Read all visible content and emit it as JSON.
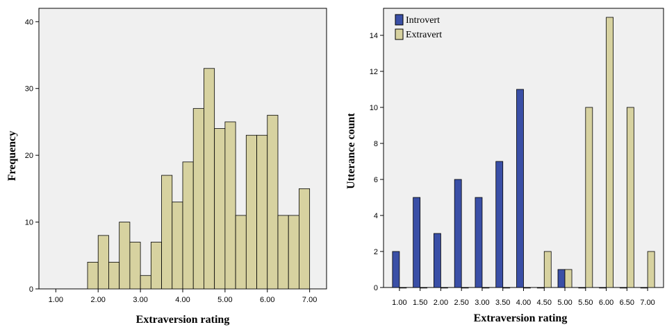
{
  "chart_data": [
    {
      "type": "bar",
      "title": "",
      "xlabel": "Extraversion rating",
      "ylabel": "Frequency",
      "xlim": [
        0.6,
        7.4
      ],
      "ylim": [
        0,
        42
      ],
      "x_ticks": [
        "1.00",
        "2.00",
        "3.00",
        "4.00",
        "5.00",
        "6.00",
        "7.00"
      ],
      "x_tick_values": [
        1,
        2,
        3,
        4,
        5,
        6,
        7
      ],
      "y_ticks": [
        "0",
        "10",
        "20",
        "30",
        "40"
      ],
      "y_tick_values": [
        0,
        10,
        20,
        30,
        40
      ],
      "bin_edges": [
        1.75,
        2.0,
        2.25,
        2.5,
        2.75,
        3.0,
        3.25,
        3.5,
        3.75,
        4.0,
        4.25,
        4.5,
        4.75,
        5.0,
        5.25,
        5.5,
        5.75,
        6.0,
        6.25,
        6.5,
        6.75,
        7.0
      ],
      "values": [
        4,
        8,
        4,
        10,
        7,
        2,
        7,
        17,
        13,
        19,
        27,
        33,
        24,
        25,
        11,
        23,
        23,
        26,
        11,
        11,
        15
      ],
      "color": "#d7d2a0",
      "plot_bg": "#f0f0f0"
    },
    {
      "type": "bar",
      "title": "",
      "xlabel": "Extraversion rating",
      "ylabel": "Utterance count",
      "ylim": [
        0,
        15.5
      ],
      "categories": [
        "1.00",
        "1.50",
        "2.00",
        "2.50",
        "3.00",
        "3.50",
        "4.00",
        "4.50",
        "5.00",
        "5.50",
        "6.00",
        "6.50",
        "7.00"
      ],
      "y_ticks": [
        "0",
        "2",
        "4",
        "6",
        "8",
        "10",
        "12",
        "14"
      ],
      "y_tick_values": [
        0,
        2,
        4,
        6,
        8,
        10,
        12,
        14
      ],
      "legend_position": "top-left",
      "series": [
        {
          "name": "Introvert",
          "color": "#3a4fa6",
          "values": [
            2,
            5,
            3,
            6,
            5,
            7,
            11,
            0,
            1,
            0,
            0,
            0,
            0
          ]
        },
        {
          "name": "Extravert",
          "color": "#d7d2a0",
          "values": [
            0,
            0,
            0,
            0,
            0,
            0,
            0,
            2,
            1,
            10,
            15,
            10,
            2
          ]
        }
      ],
      "plot_bg": "#f0f0f0"
    }
  ]
}
